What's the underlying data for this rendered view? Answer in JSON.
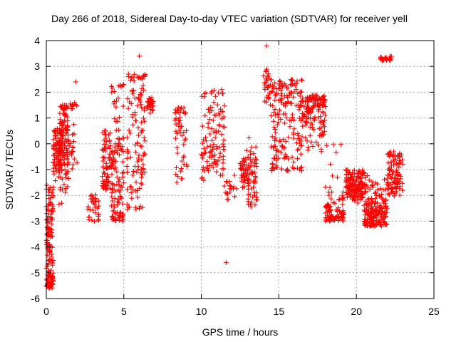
{
  "chart_data": {
    "type": "scatter",
    "title": "Day 266 of 2018, Sidereal Day-to-day VTEC variation (SDTVAR) for receiver yell",
    "xlabel": "GPS time / hours",
    "ylabel": "SDTVAR / TECUs",
    "xlim": [
      0,
      25
    ],
    "ylim": [
      -6,
      4
    ],
    "xticks": [
      0,
      5,
      10,
      15,
      20,
      25
    ],
    "yticks": [
      -6,
      -5,
      -4,
      -3,
      -2,
      -1,
      0,
      1,
      2,
      3,
      4
    ],
    "grid": true,
    "marker": "plus",
    "marker_color": "#ff0000",
    "series": [
      {
        "name": "SDTVAR",
        "clusters": [
          {
            "x_range": [
              0.0,
              0.45
            ],
            "y_range": [
              -5.6,
              -1.6
            ],
            "count": 150
          },
          {
            "x_range": [
              0.45,
              1.0
            ],
            "y_range": [
              -3.1,
              0.6
            ],
            "count": 80
          },
          {
            "x_range": [
              0.8,
              1.4
            ],
            "y_range": [
              -2.8,
              1.5
            ],
            "count": 120
          },
          {
            "x_range": [
              1.3,
              2.0
            ],
            "y_range": [
              -2.8,
              1.6
            ],
            "count": 40
          },
          {
            "x_range": [
              2.5,
              3.4
            ],
            "y_range": [
              -3.0,
              -0.3
            ],
            "count": 30
          },
          {
            "x_range": [
              3.6,
              4.3
            ],
            "y_range": [
              -1.8,
              0.5
            ],
            "count": 80
          },
          {
            "x_range": [
              4.2,
              5.0
            ],
            "y_range": [
              -3.0,
              2.4
            ],
            "count": 120
          },
          {
            "x_range": [
              5.2,
              6.4
            ],
            "y_range": [
              -2.6,
              2.7
            ],
            "count": 120
          },
          {
            "x_range": [
              6.5,
              6.9
            ],
            "y_range": [
              0.6,
              1.8
            ],
            "count": 30
          },
          {
            "x_range": [
              8.3,
              9.1
            ],
            "y_range": [
              -2.0,
              1.4
            ],
            "count": 50
          },
          {
            "x_range": [
              10.0,
              11.5
            ],
            "y_range": [
              -1.8,
              2.1
            ],
            "count": 110
          },
          {
            "x_range": [
              11.3,
              12.3
            ],
            "y_range": [
              -2.3,
              -0.5
            ],
            "count": 20
          },
          {
            "x_range": [
              12.5,
              13.0
            ],
            "y_range": [
              -1.8,
              0.2
            ],
            "count": 40
          },
          {
            "x_range": [
              13.0,
              13.6
            ],
            "y_range": [
              -2.6,
              0.5
            ],
            "count": 60
          },
          {
            "x_range": [
              14.0,
              14.5
            ],
            "y_range": [
              0.0,
              2.9
            ],
            "count": 30
          },
          {
            "x_range": [
              14.5,
              16.5
            ],
            "y_range": [
              -1.1,
              2.5
            ],
            "count": 180
          },
          {
            "x_range": [
              16.5,
              18.0
            ],
            "y_range": [
              -0.5,
              1.9
            ],
            "count": 150
          },
          {
            "x_range": [
              18.0,
              19.2
            ],
            "y_range": [
              -3.0,
              0.0
            ],
            "count": 100
          },
          {
            "x_range": [
              19.3,
              20.5
            ],
            "y_range": [
              -3.0,
              -1.0
            ],
            "count": 150
          },
          {
            "x_range": [
              20.5,
              22.0
            ],
            "y_range": [
              -3.2,
              -0.8
            ],
            "count": 200
          },
          {
            "x_range": [
              22.0,
              23.0
            ],
            "y_range": [
              -2.2,
              -0.3
            ],
            "count": 100
          },
          {
            "x_range": [
              21.5,
              22.3
            ],
            "y_range": [
              3.2,
              3.6
            ],
            "count": 25
          }
        ],
        "outliers": [
          {
            "x": 14.2,
            "y": 3.8
          },
          {
            "x": 11.6,
            "y": -4.6
          },
          {
            "x": 6.0,
            "y": 3.4
          },
          {
            "x": 5.3,
            "y": 2.7
          },
          {
            "x": 1.9,
            "y": 2.4
          },
          {
            "x": 3.1,
            "y": -3.0
          },
          {
            "x": 8.5,
            "y": 1.4
          }
        ]
      }
    ]
  }
}
